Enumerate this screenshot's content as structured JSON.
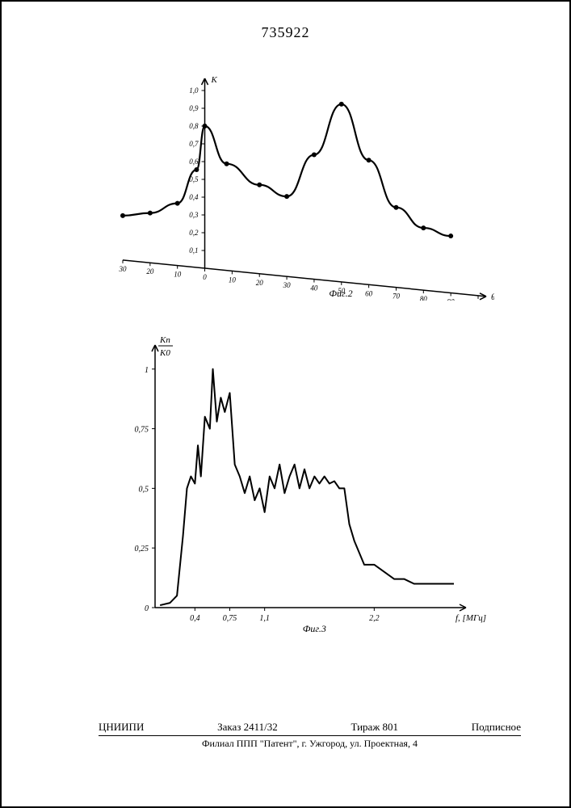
{
  "patent_number": "735922",
  "fig2": {
    "type": "line",
    "title": "",
    "y_axis_label": "K",
    "x_axis_label": "θ°",
    "caption": "Фиг.2",
    "xlim": [
      -30,
      100
    ],
    "ylim": [
      0,
      1.0
    ],
    "x_ticks_neg": [
      -30,
      -20,
      -10,
      0
    ],
    "x_ticks_pos": [
      10,
      20,
      30,
      40,
      50,
      60,
      70,
      80,
      90,
      100
    ],
    "x_tick_labels": [
      "30",
      "20",
      "10",
      "0",
      "10",
      "20",
      "30",
      "40",
      "50",
      "60",
      "70",
      "80",
      "90",
      "100"
    ],
    "y_ticks": [
      0.1,
      0.2,
      0.3,
      0.4,
      0.5,
      0.6,
      0.7,
      0.8,
      0.9,
      1.0
    ],
    "y_tick_labels": [
      "0,1",
      "0,2",
      "0,3",
      "0,4",
      "0,5",
      "0,6",
      "0,7",
      "0,8",
      "0,9",
      "1,0"
    ],
    "series": {
      "x": [
        -30,
        -20,
        -10,
        -3,
        0,
        8,
        20,
        30,
        40,
        50,
        60,
        70,
        80,
        90
      ],
      "y": [
        0.25,
        0.28,
        0.35,
        0.55,
        0.8,
        0.6,
        0.5,
        0.45,
        0.7,
        1.0,
        0.7,
        0.45,
        0.35,
        0.32
      ],
      "markers": true
    },
    "line_color": "#000000",
    "line_width": 2.2,
    "marker_size": 3,
    "background_color": "#ffffff",
    "font_size_ticks": 9,
    "font_style": "italic"
  },
  "fig3": {
    "type": "line",
    "y_axis_label": "Kп / K0",
    "x_axis_label": "f, [МГц]",
    "caption": "Фиг.3",
    "xlim": [
      0,
      3.0
    ],
    "ylim": [
      0,
      1.05
    ],
    "x_ticks": [
      0.4,
      0.75,
      1.1,
      2.2
    ],
    "x_tick_labels": [
      "0,4",
      "0,75",
      "1,1",
      "2,2"
    ],
    "y_ticks": [
      0,
      0.25,
      0.5,
      0.75,
      1.0
    ],
    "y_tick_labels": [
      "0",
      "0,25",
      "0,5",
      "0,75",
      "1"
    ],
    "series": {
      "x": [
        0.05,
        0.15,
        0.22,
        0.28,
        0.32,
        0.36,
        0.4,
        0.43,
        0.46,
        0.5,
        0.55,
        0.58,
        0.62,
        0.66,
        0.7,
        0.75,
        0.8,
        0.85,
        0.9,
        0.95,
        1.0,
        1.05,
        1.1,
        1.15,
        1.2,
        1.25,
        1.3,
        1.35,
        1.4,
        1.45,
        1.5,
        1.55,
        1.6,
        1.65,
        1.7,
        1.75,
        1.8,
        1.85,
        1.9,
        1.95,
        2.0,
        2.1,
        2.2,
        2.3,
        2.4,
        2.5,
        2.6,
        2.8,
        3.0
      ],
      "y": [
        0.01,
        0.02,
        0.05,
        0.3,
        0.5,
        0.55,
        0.52,
        0.68,
        0.55,
        0.8,
        0.75,
        1.0,
        0.78,
        0.88,
        0.82,
        0.9,
        0.6,
        0.55,
        0.48,
        0.55,
        0.45,
        0.5,
        0.4,
        0.55,
        0.5,
        0.6,
        0.48,
        0.55,
        0.6,
        0.5,
        0.58,
        0.5,
        0.55,
        0.52,
        0.55,
        0.52,
        0.53,
        0.5,
        0.5,
        0.35,
        0.28,
        0.18,
        0.18,
        0.15,
        0.12,
        0.12,
        0.1,
        0.1,
        0.1
      ]
    },
    "line_color": "#000000",
    "line_width": 2.0,
    "background_color": "#ffffff",
    "font_size_ticks": 10,
    "font_style": "italic"
  },
  "footer": {
    "org": "ЦНИИПИ",
    "order": "Заказ 2411/32",
    "tirage": "Тираж 801",
    "signed": "Подписное",
    "address": "Филиал ППП \"Патент\", г. Ужгород, ул. Проектная, 4"
  }
}
